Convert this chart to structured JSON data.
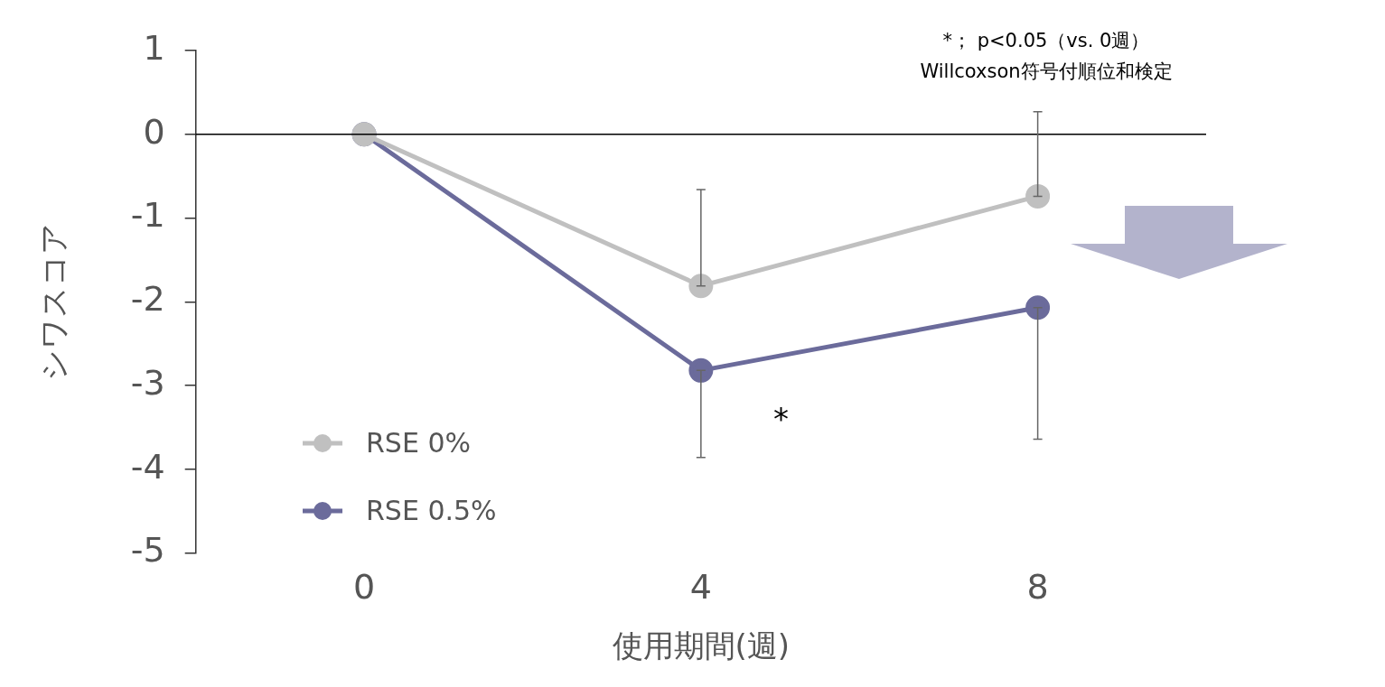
{
  "chart_data": {
    "type": "line",
    "xlabel": "使用期間(週)",
    "ylabel": "シワスコア",
    "x": [
      0,
      4,
      8
    ],
    "series": [
      {
        "name": "RSE 0%",
        "color": "#c0c0c0",
        "values": [
          0,
          -1.81,
          -0.74
        ],
        "errors": [
          null,
          [
            -1.81,
            -0.66
          ],
          [
            -0.74,
            0.27
          ]
        ]
      },
      {
        "name": "RSE 0.5%",
        "color": "#6b6b9b",
        "values": [
          0,
          -2.82,
          -2.07
        ],
        "errors": [
          null,
          [
            -3.86,
            -2.82
          ],
          [
            -3.64,
            -2.07
          ]
        ]
      }
    ],
    "xlim": [
      -2,
      10
    ],
    "xticks": [
      0,
      4,
      8
    ],
    "ylim": [
      -5,
      1
    ],
    "yticks": [
      1,
      0,
      -1,
      -2,
      -3,
      -4,
      -5
    ],
    "ref_lines": [
      {
        "axis": "y",
        "value": 0,
        "color": "#000000"
      }
    ],
    "annotations": [
      "*",
      "*； p<0.05（vs. 0週）",
      "Willcoxson符号付順位和検定"
    ],
    "grid": false,
    "legend": "bottom left",
    "marker": "circle",
    "line_style": "solid"
  }
}
